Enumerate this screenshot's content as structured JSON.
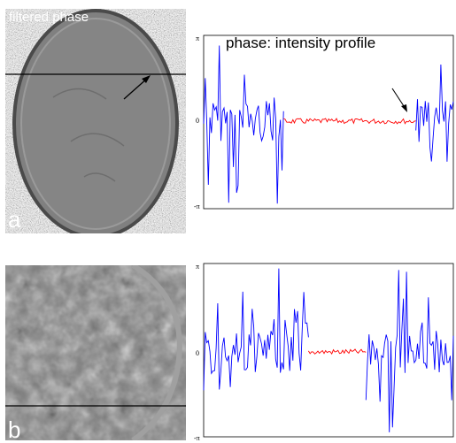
{
  "panels": [
    {
      "letter": "a",
      "image_title": "filtered phase",
      "image_type": "axial MRI filtered phase, whole head slice",
      "annotation": "phase: intensity profile"
    },
    {
      "letter": "b",
      "image_title": "",
      "image_type": "axial MRI filtered phase, zoomed brain region",
      "annotation": ""
    }
  ],
  "colors": {
    "outside_brain_profile": "#0000ff",
    "inside_brain_profile": "#ff0000",
    "image_background": "#777777"
  },
  "chart_data": [
    {
      "type": "line",
      "ylim": [
        "-π",
        "π"
      ],
      "yticks": [
        "π",
        "0",
        "-π"
      ],
      "series": [
        {
          "color": "blue",
          "region": "left",
          "x": [
            0,
            0.32
          ]
        },
        {
          "color": "red",
          "region": "middle",
          "x": [
            0.32,
            0.85
          ]
        },
        {
          "color": "blue",
          "region": "right",
          "x": [
            0.85,
            1
          ]
        }
      ],
      "annotations": [
        "phase: intensity profile"
      ]
    },
    {
      "type": "line",
      "ylim": [
        "-π",
        "π"
      ],
      "yticks": [
        "π",
        "0",
        "-π"
      ],
      "series": [
        {
          "color": "blue",
          "region": "left",
          "x": [
            0,
            0.42
          ]
        },
        {
          "color": "red",
          "region": "middle",
          "x": [
            0.42,
            0.65
          ]
        },
        {
          "color": "blue",
          "region": "right",
          "x": [
            0.65,
            1
          ]
        }
      ]
    }
  ]
}
